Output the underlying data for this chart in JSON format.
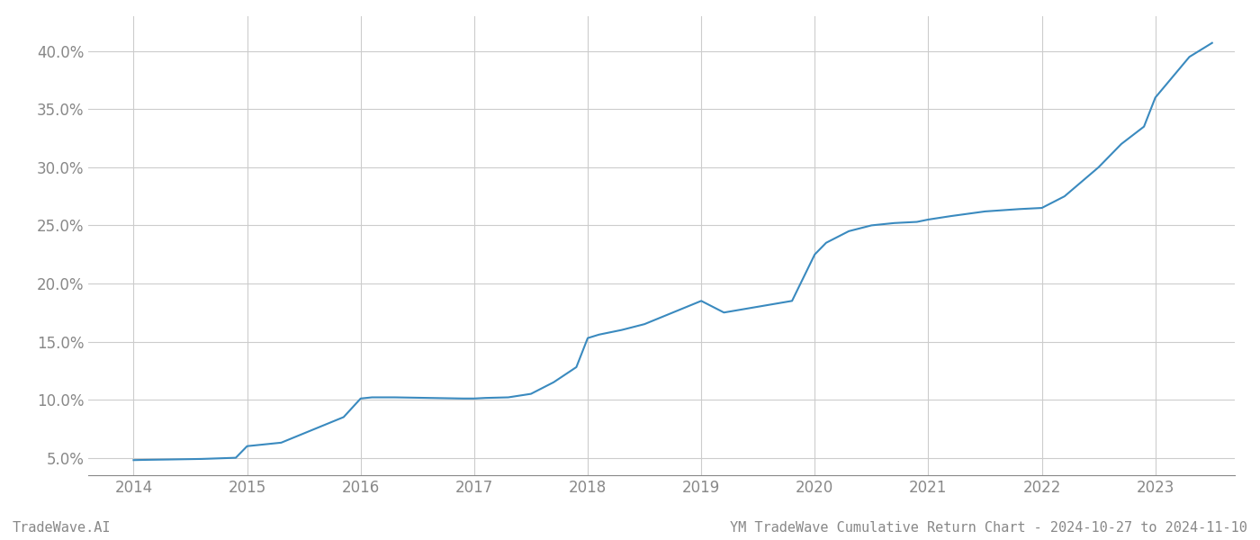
{
  "title": "YM TradeWave Cumulative Return Chart - 2024-10-27 to 2024-11-10",
  "watermark_left": "TradeWave.AI",
  "x_values": [
    2014.0,
    2014.1,
    2014.3,
    2014.6,
    2014.9,
    2015.0,
    2015.1,
    2015.3,
    2015.6,
    2015.85,
    2016.0,
    2016.1,
    2016.3,
    2016.6,
    2016.9,
    2017.0,
    2017.1,
    2017.3,
    2017.5,
    2017.7,
    2017.9,
    2018.0,
    2018.1,
    2018.3,
    2018.5,
    2019.0,
    2019.2,
    2019.5,
    2019.8,
    2020.0,
    2020.1,
    2020.3,
    2020.5,
    2020.7,
    2020.9,
    2021.0,
    2021.2,
    2021.5,
    2021.8,
    2022.0,
    2022.2,
    2022.5,
    2022.7,
    2022.9,
    2023.0,
    2023.3,
    2023.5
  ],
  "y_values": [
    4.8,
    4.82,
    4.85,
    4.9,
    5.0,
    6.0,
    6.1,
    6.3,
    7.5,
    8.5,
    10.1,
    10.2,
    10.2,
    10.15,
    10.1,
    10.1,
    10.15,
    10.2,
    10.5,
    11.5,
    12.8,
    15.3,
    15.6,
    16.0,
    16.5,
    18.5,
    17.5,
    18.0,
    18.5,
    22.5,
    23.5,
    24.5,
    25.0,
    25.2,
    25.3,
    25.5,
    25.8,
    26.2,
    26.4,
    26.5,
    27.5,
    30.0,
    32.0,
    33.5,
    36.0,
    39.5,
    40.7
  ],
  "line_color": "#3a8abf",
  "line_width": 1.5,
  "bg_color": "#ffffff",
  "grid_color": "#cccccc",
  "yticks": [
    5.0,
    10.0,
    15.0,
    20.0,
    25.0,
    30.0,
    35.0,
    40.0
  ],
  "xticks": [
    2014,
    2015,
    2016,
    2017,
    2018,
    2019,
    2020,
    2021,
    2022,
    2023
  ],
  "ylim": [
    3.5,
    43.0
  ],
  "xlim": [
    2013.6,
    2023.7
  ],
  "tick_label_color": "#888888",
  "spine_color": "#888888",
  "title_color": "#888888",
  "title_fontsize": 11,
  "watermark_fontsize": 11
}
